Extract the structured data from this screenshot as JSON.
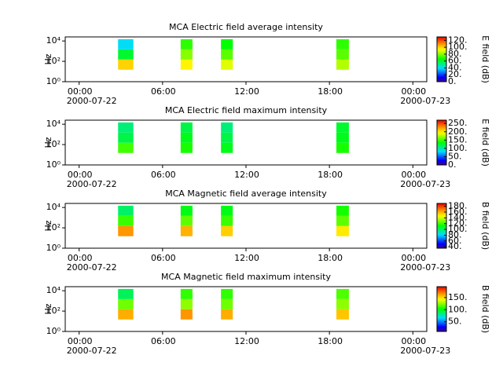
{
  "chart_data": [
    {
      "type": "spectrogram",
      "title": "MCA  Electric field average intensity",
      "ylabel": "Hz",
      "colorbar_label": "E field (dB)",
      "xlim": [
        -1,
        25
      ],
      "xticks": [
        {
          "value": 0,
          "label": "00:00"
        },
        {
          "value": 6,
          "label": "06:00"
        },
        {
          "value": 12,
          "label": "12:00"
        },
        {
          "value": 18,
          "label": "18:00"
        },
        {
          "value": 24,
          "label": "00:00"
        }
      ],
      "date_labels": [
        {
          "value": 0,
          "label": "2000-07-22"
        },
        {
          "value": 24,
          "label": "2000-07-23"
        }
      ],
      "log_y": true,
      "ylim": [
        1,
        25000
      ],
      "yticks": [
        {
          "value": 1,
          "label": "10⁰"
        },
        {
          "value": 100,
          "label": "10²"
        },
        {
          "value": 10000,
          "label": "10⁴"
        }
      ],
      "clim": [
        0,
        130
      ],
      "cticks": [
        {
          "value": 0,
          "label": "0."
        },
        {
          "value": 20,
          "label": "20."
        },
        {
          "value": 40,
          "label": "40."
        },
        {
          "value": 60,
          "label": "60."
        },
        {
          "value": 80,
          "label": "80."
        },
        {
          "value": 100,
          "label": "100."
        },
        {
          "value": 120,
          "label": "120."
        }
      ],
      "freq_edges": [
        15,
        150,
        1500,
        15000
      ],
      "segments": [
        {
          "start": 2.8,
          "end": 3.9,
          "values": [
            100,
            60,
            40
          ]
        },
        {
          "start": 7.3,
          "end": 8.15,
          "values": [
            95,
            80,
            70
          ]
        },
        {
          "start": 10.2,
          "end": 11.05,
          "values": [
            90,
            75,
            65
          ]
        },
        {
          "start": 18.5,
          "end": 19.4,
          "values": [
            85,
            75,
            70
          ]
        }
      ]
    },
    {
      "type": "spectrogram",
      "title": "MCA  Electric field maximum intensity",
      "ylabel": "Hz",
      "colorbar_label": "E field (dB)",
      "xlim": [
        -1,
        25
      ],
      "xticks": [
        {
          "value": 0,
          "label": "00:00"
        },
        {
          "value": 6,
          "label": "06:00"
        },
        {
          "value": 12,
          "label": "12:00"
        },
        {
          "value": 18,
          "label": "18:00"
        },
        {
          "value": 24,
          "label": "00:00"
        }
      ],
      "date_labels": [
        {
          "value": 0,
          "label": "2000-07-22"
        },
        {
          "value": 24,
          "label": "2000-07-23"
        }
      ],
      "log_y": true,
      "ylim": [
        1,
        25000
      ],
      "yticks": [
        {
          "value": 1,
          "label": "10⁰"
        },
        {
          "value": 100,
          "label": "10²"
        },
        {
          "value": 10000,
          "label": "10⁴"
        }
      ],
      "clim": [
        0,
        270
      ],
      "cticks": [
        {
          "value": 0,
          "label": "0."
        },
        {
          "value": 50,
          "label": "50."
        },
        {
          "value": 100,
          "label": "100."
        },
        {
          "value": 150,
          "label": "150."
        },
        {
          "value": 200,
          "label": "200."
        },
        {
          "value": 250,
          "label": "250."
        }
      ],
      "freq_edges": [
        15,
        150,
        1500,
        15000
      ],
      "segments": [
        {
          "start": 2.8,
          "end": 3.9,
          "values": [
            150,
            120,
            110
          ]
        },
        {
          "start": 7.3,
          "end": 8.15,
          "values": [
            140,
            130,
            120
          ]
        },
        {
          "start": 10.2,
          "end": 11.05,
          "values": [
            130,
            120,
            110
          ]
        },
        {
          "start": 18.5,
          "end": 19.4,
          "values": [
            140,
            130,
            125
          ]
        }
      ]
    },
    {
      "type": "spectrogram",
      "title": "MCA  Magnetic field average intensity",
      "ylabel": "Hz",
      "colorbar_label": "B field (dB)",
      "xlim": [
        -1,
        25
      ],
      "xticks": [
        {
          "value": 0,
          "label": "00:00"
        },
        {
          "value": 6,
          "label": "06:00"
        },
        {
          "value": 12,
          "label": "12:00"
        },
        {
          "value": 18,
          "label": "18:00"
        },
        {
          "value": 24,
          "label": "00:00"
        }
      ],
      "date_labels": [
        {
          "value": 0,
          "label": "2000-07-22"
        },
        {
          "value": 24,
          "label": "2000-07-23"
        }
      ],
      "log_y": true,
      "ylim": [
        1,
        25000
      ],
      "yticks": [
        {
          "value": 1,
          "label": "10⁰"
        },
        {
          "value": 100,
          "label": "10²"
        },
        {
          "value": 10000,
          "label": "10⁴"
        }
      ],
      "clim": [
        35,
        190
      ],
      "cticks": [
        {
          "value": 40,
          "label": "40."
        },
        {
          "value": 60,
          "label": "60."
        },
        {
          "value": 80,
          "label": "80."
        },
        {
          "value": 100,
          "label": "100."
        },
        {
          "value": 120,
          "label": "120."
        },
        {
          "value": 140,
          "label": "140."
        },
        {
          "value": 160,
          "label": "160."
        },
        {
          "value": 180,
          "label": "180."
        }
      ],
      "freq_edges": [
        15,
        150,
        1500,
        15000
      ],
      "segments": [
        {
          "start": 2.8,
          "end": 3.9,
          "values": [
            165,
            120,
            100
          ]
        },
        {
          "start": 7.3,
          "end": 8.15,
          "values": [
            160,
            125,
            110
          ]
        },
        {
          "start": 10.2,
          "end": 11.05,
          "values": [
            155,
            120,
            110
          ]
        },
        {
          "start": 18.5,
          "end": 19.4,
          "values": [
            150,
            125,
            115
          ]
        }
      ]
    },
    {
      "type": "spectrogram",
      "title": "MCA  Magnetic field maximum intensity",
      "ylabel": "Hz",
      "colorbar_label": "B field (dB)",
      "xlim": [
        -1,
        25
      ],
      "xticks": [
        {
          "value": 0,
          "label": "00:00"
        },
        {
          "value": 6,
          "label": "06:00"
        },
        {
          "value": 12,
          "label": "12:00"
        },
        {
          "value": 18,
          "label": "18:00"
        },
        {
          "value": 24,
          "label": "00:00"
        }
      ],
      "date_labels": [
        {
          "value": 0,
          "label": "2000-07-22"
        },
        {
          "value": 24,
          "label": "2000-07-23"
        }
      ],
      "log_y": true,
      "ylim": [
        1,
        25000
      ],
      "yticks": [
        {
          "value": 1,
          "label": "10⁰"
        },
        {
          "value": 100,
          "label": "10²"
        },
        {
          "value": 10000,
          "label": "10⁴"
        }
      ],
      "clim": [
        10,
        195
      ],
      "cticks": [
        {
          "value": 50,
          "label": "50."
        },
        {
          "value": 100,
          "label": "100."
        },
        {
          "value": 150,
          "label": "150."
        }
      ],
      "freq_edges": [
        15,
        150,
        1500,
        15000
      ],
      "segments": [
        {
          "start": 2.8,
          "end": 3.9,
          "values": [
            160,
            120,
            90
          ]
        },
        {
          "start": 7.3,
          "end": 8.15,
          "values": [
            165,
            125,
            110
          ]
        },
        {
          "start": 10.2,
          "end": 11.05,
          "values": [
            160,
            120,
            110
          ]
        },
        {
          "start": 18.5,
          "end": 19.4,
          "values": [
            155,
            125,
            115
          ]
        }
      ]
    }
  ]
}
